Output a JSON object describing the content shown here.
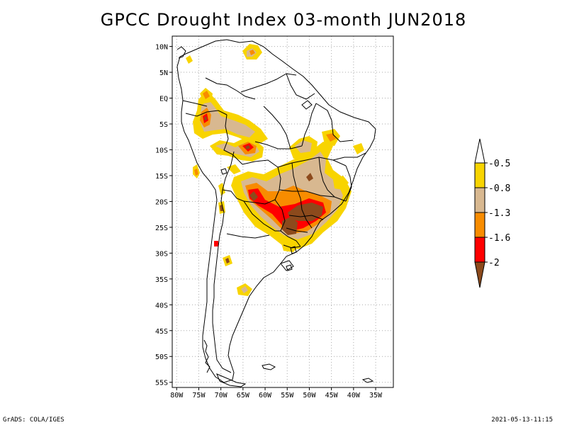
{
  "title": "GPCC Drought Index 03-month JUN2018",
  "footer": {
    "credit": "GrADS: COLA/IGES",
    "timestamp": "2021-05-13-11:15"
  },
  "map": {
    "lon_range": [
      -81,
      -31
    ],
    "lat_range": [
      -56,
      12
    ],
    "lat_ticks": [
      {
        "value": 10,
        "label": "10N"
      },
      {
        "value": 5,
        "label": "5N"
      },
      {
        "value": 0,
        "label": "EQ"
      },
      {
        "value": -5,
        "label": "5S"
      },
      {
        "value": -10,
        "label": "10S"
      },
      {
        "value": -15,
        "label": "15S"
      },
      {
        "value": -20,
        "label": "20S"
      },
      {
        "value": -25,
        "label": "25S"
      },
      {
        "value": -30,
        "label": "30S"
      },
      {
        "value": -35,
        "label": "35S"
      },
      {
        "value": -40,
        "label": "40S"
      },
      {
        "value": -45,
        "label": "45S"
      },
      {
        "value": -50,
        "label": "50S"
      },
      {
        "value": -55,
        "label": "55S"
      }
    ],
    "lon_ticks": [
      {
        "value": -80,
        "label": "80W"
      },
      {
        "value": -75,
        "label": "75W"
      },
      {
        "value": -70,
        "label": "70W"
      },
      {
        "value": -65,
        "label": "65W"
      },
      {
        "value": -60,
        "label": "60W"
      },
      {
        "value": -55,
        "label": "55W"
      },
      {
        "value": -50,
        "label": "50W"
      },
      {
        "value": -45,
        "label": "45W"
      },
      {
        "value": -40,
        "label": "40W"
      },
      {
        "value": -35,
        "label": "35W"
      }
    ]
  },
  "colors": {
    "cat1": "#f8d400",
    "cat2": "#d8b890",
    "cat3": "#f88c00",
    "cat4": "#ff0000",
    "cat5": "#8c4a1c"
  },
  "legend": {
    "labels": [
      "-0.5",
      "-0.8",
      "-1.3",
      "-1.6",
      "-2"
    ]
  }
}
